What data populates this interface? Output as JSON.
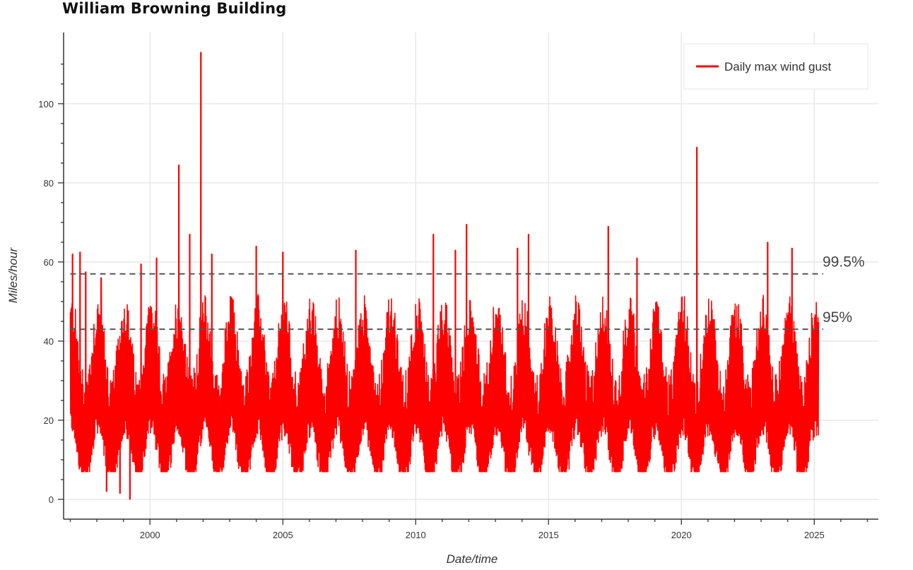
{
  "page": {
    "title": "William Browning Building"
  },
  "chart_data": {
    "type": "line",
    "xlabel": "Date/time",
    "ylabel": "Miles/hour",
    "xlim": [
      "1996-10-01",
      "2027-06-01"
    ],
    "ylim": [
      -5,
      118
    ],
    "x_ticks": [
      2000,
      2005,
      2010,
      2015,
      2020,
      2025
    ],
    "y_ticks": [
      0,
      20,
      40,
      60,
      80,
      100
    ],
    "grid": true,
    "legend_position": "top-right",
    "date_range": [
      "1997-01-01",
      "2025-03-01"
    ],
    "series": [
      {
        "name": "Daily max wind gust",
        "color": "#ff0000",
        "baseline_mph": 24,
        "typical_min_mph": 7,
        "typical_max_mph": 52,
        "peaks": [
          {
            "x": "1997-02-01",
            "y": 62
          },
          {
            "x": "1997-05-15",
            "y": 62.5
          },
          {
            "x": "1997-08-01",
            "y": 57.5
          },
          {
            "x": "1998-03-01",
            "y": 56
          },
          {
            "x": "1998-05-15",
            "y": 2
          },
          {
            "x": "1998-11-15",
            "y": 1.5
          },
          {
            "x": "1999-04-01",
            "y": 0
          },
          {
            "x": "1999-09-01",
            "y": 59.5
          },
          {
            "x": "2000-04-01",
            "y": 61
          },
          {
            "x": "2001-02-01",
            "y": 84.5
          },
          {
            "x": "2001-07-01",
            "y": 67
          },
          {
            "x": "2001-12-01",
            "y": 113
          },
          {
            "x": "2002-05-01",
            "y": 62
          },
          {
            "x": "2004-01-01",
            "y": 64
          },
          {
            "x": "2005-01-01",
            "y": 62.5
          },
          {
            "x": "2007-10-01",
            "y": 63
          },
          {
            "x": "2010-09-01",
            "y": 67
          },
          {
            "x": "2011-07-01",
            "y": 63
          },
          {
            "x": "2011-12-01",
            "y": 69.5
          },
          {
            "x": "2013-11-01",
            "y": 63.5
          },
          {
            "x": "2014-04-01",
            "y": 67
          },
          {
            "x": "2017-04-01",
            "y": 69
          },
          {
            "x": "2018-05-01",
            "y": 61
          },
          {
            "x": "2020-08-01",
            "y": 89
          },
          {
            "x": "2023-04-01",
            "y": 65
          },
          {
            "x": "2024-03-01",
            "y": 63.5
          },
          {
            "x": "2025-02-01",
            "y": 45
          }
        ]
      }
    ],
    "reference_lines": [
      {
        "label": "99.5%",
        "y": 57
      },
      {
        "label": "95%",
        "y": 43
      }
    ]
  }
}
